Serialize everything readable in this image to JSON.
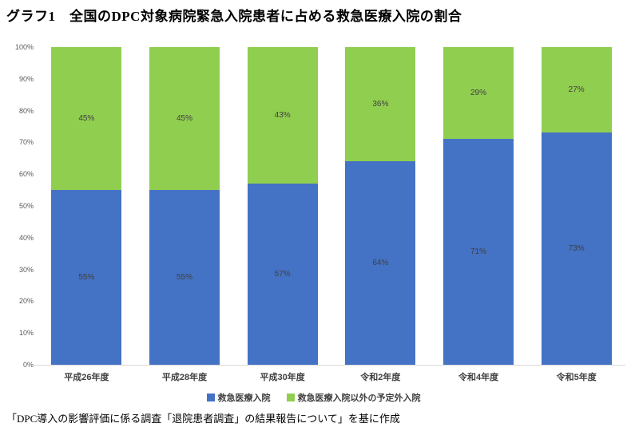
{
  "title": "グラフ1　全国のDPC対象病院緊急入院患者に占める救急医療入院の割合",
  "footer": "「DPC導入の影響評価に係る調査「退院患者調査」の結果報告について」を基に作成",
  "colors": {
    "emergency_blue": "#4472C4",
    "unplanned_green": "#90CE50",
    "axis_line": "#d9d9d9",
    "tick_text": "#595959",
    "label_text": "#404040"
  },
  "chart_data": {
    "type": "bar",
    "stacked": true,
    "percent": true,
    "title": "グラフ1　全国のDPC対象病院緊急入院患者に占める救急医療入院の割合",
    "categories": [
      "平成26年度",
      "平成28年度",
      "平成30年度",
      "令和2年度",
      "令和4年度",
      "令和5年度"
    ],
    "series": [
      {
        "name": "救急医療入院",
        "color": "#4472C4",
        "values": [
          55,
          55,
          57,
          64,
          71,
          73
        ]
      },
      {
        "name": "救急医療入院以外の予定外入院",
        "color": "#90CE50",
        "values": [
          45,
          45,
          43,
          36,
          29,
          27
        ]
      }
    ],
    "xlabel": "",
    "ylabel": "",
    "ylim": [
      0,
      100
    ],
    "yticks": [
      "0%",
      "10%",
      "20%",
      "30%",
      "40%",
      "50%",
      "60%",
      "70%",
      "80%",
      "90%",
      "100%"
    ],
    "data_label_suffix": "%",
    "grid": false,
    "legend_position": "bottom"
  }
}
